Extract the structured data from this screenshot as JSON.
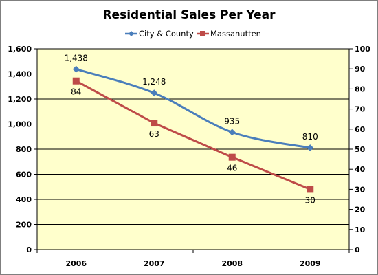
{
  "chart_data": {
    "type": "line",
    "title": "Residential Sales Per Year",
    "categories": [
      "2006",
      "2007",
      "2008",
      "2009"
    ],
    "series": [
      {
        "name": "City & County",
        "axis": "left",
        "color": "#4a7ebb",
        "marker": "diamond",
        "values": [
          1438,
          1248,
          935,
          810
        ],
        "labels": [
          "1,438",
          "1,248",
          "935",
          "810"
        ]
      },
      {
        "name": "Massanutten",
        "axis": "right",
        "color": "#be4b48",
        "marker": "square",
        "values": [
          84,
          63,
          46,
          30
        ],
        "labels": [
          "84",
          "63",
          "46",
          "30"
        ]
      }
    ],
    "y_left": {
      "min": 0,
      "max": 1600,
      "ticks": [
        0,
        200,
        400,
        600,
        800,
        1000,
        1200,
        1400,
        1600
      ],
      "tick_labels": [
        "0",
        "200",
        "400",
        "600",
        "800",
        "1,000",
        "1,200",
        "1,400",
        "1,600"
      ]
    },
    "y_right": {
      "min": 0,
      "max": 100,
      "ticks": [
        0,
        10,
        20,
        30,
        40,
        50,
        60,
        70,
        80,
        90,
        100
      ],
      "tick_labels": [
        "0",
        "10",
        "20",
        "30",
        "40",
        "50",
        "60",
        "70",
        "80",
        "90",
        "100"
      ]
    },
    "legend_position": "top",
    "grid": "horizontal",
    "plot_background": "#ffffcc"
  }
}
